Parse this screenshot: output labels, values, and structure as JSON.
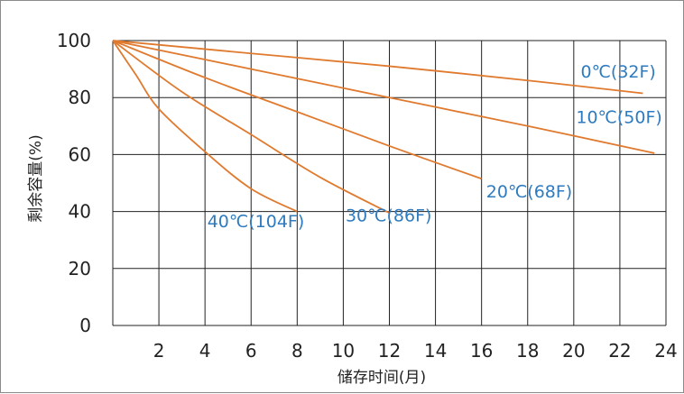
{
  "chart_data": {
    "type": "line",
    "title": "",
    "xlabel": "储存时间(月)",
    "ylabel": "剩余容量(%)",
    "xlim": [
      0,
      24
    ],
    "ylim": [
      0,
      100
    ],
    "x_ticks": [
      2,
      4,
      6,
      8,
      10,
      12,
      14,
      16,
      18,
      20,
      22,
      24
    ],
    "y_ticks": [
      0,
      20,
      40,
      60,
      80,
      100
    ],
    "grid": true,
    "legend": "inline labels at line ends",
    "line_color": "#e07a2e",
    "label_color": "#2e7bbf",
    "series": [
      {
        "name": "0℃(32F)",
        "label_anchor": [
          20.3,
          87
        ],
        "points": [
          [
            0,
            100
          ],
          [
            6,
            95.5
          ],
          [
            12,
            91
          ],
          [
            18,
            86
          ],
          [
            23,
            81.5
          ]
        ]
      },
      {
        "name": "10℃(50F)",
        "label_anchor": [
          20.1,
          71
        ],
        "points": [
          [
            0,
            100
          ],
          [
            6,
            90
          ],
          [
            12,
            80
          ],
          [
            18,
            70
          ],
          [
            23.5,
            60.5
          ]
        ]
      },
      {
        "name": "20℃(68F)",
        "label_anchor": [
          16.2,
          45
        ],
        "points": [
          [
            0,
            100
          ],
          [
            4,
            87
          ],
          [
            8,
            75
          ],
          [
            12,
            63
          ],
          [
            16,
            51.5
          ]
        ]
      },
      {
        "name": "30℃(86F)",
        "label_anchor": [
          10.1,
          36.5
        ],
        "points": [
          [
            0,
            100
          ],
          [
            3,
            82
          ],
          [
            6,
            67
          ],
          [
            9,
            52
          ],
          [
            12,
            39.5
          ]
        ]
      },
      {
        "name": "40℃(104F)",
        "label_anchor": [
          4.1,
          34.5
        ],
        "points": [
          [
            0,
            100
          ],
          [
            1,
            88
          ],
          [
            2,
            76
          ],
          [
            4,
            61
          ],
          [
            6,
            48
          ],
          [
            8,
            40
          ]
        ]
      }
    ]
  }
}
